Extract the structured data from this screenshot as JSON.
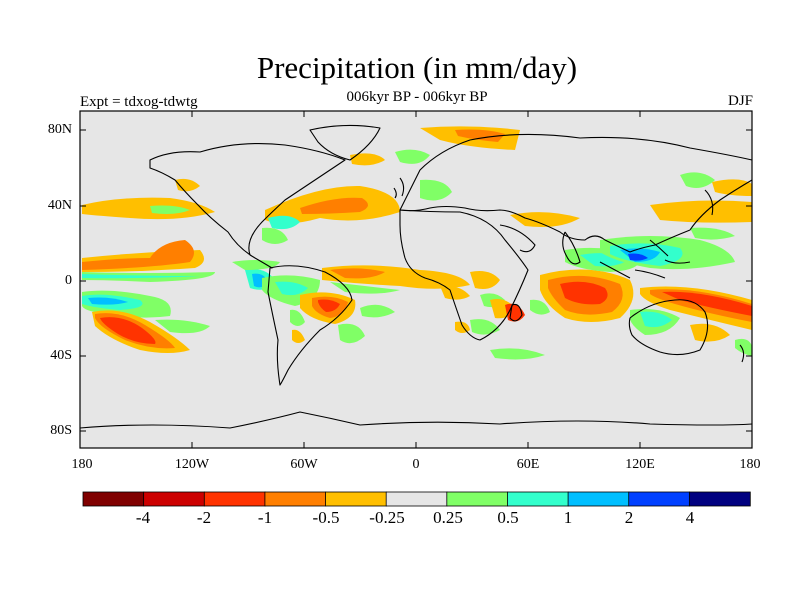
{
  "title": "Precipitation (in mm/day)",
  "subtitle": "006kyr BP - 006kyr BP",
  "left_label": "Expt = tdxog-tdwtg",
  "right_label": "DJF",
  "lat_ticks": [
    "80N",
    "40N",
    "0",
    "40S",
    "80S"
  ],
  "lon_ticks": [
    "180",
    "120W",
    "60W",
    "0",
    "60E",
    "120E",
    "180"
  ],
  "colorbar": {
    "labels": [
      "-4",
      "-2",
      "-1",
      "-0.5",
      "-0.25",
      "0.25",
      "0.5",
      "1",
      "2",
      "4"
    ],
    "colors": [
      "#800000",
      "#cc0000",
      "#ff3300",
      "#ff7f00",
      "#ffbf00",
      "#e6e6e6",
      "#80ff66",
      "#33ffcc",
      "#00bfff",
      "#0040ff",
      "#000080"
    ]
  }
}
